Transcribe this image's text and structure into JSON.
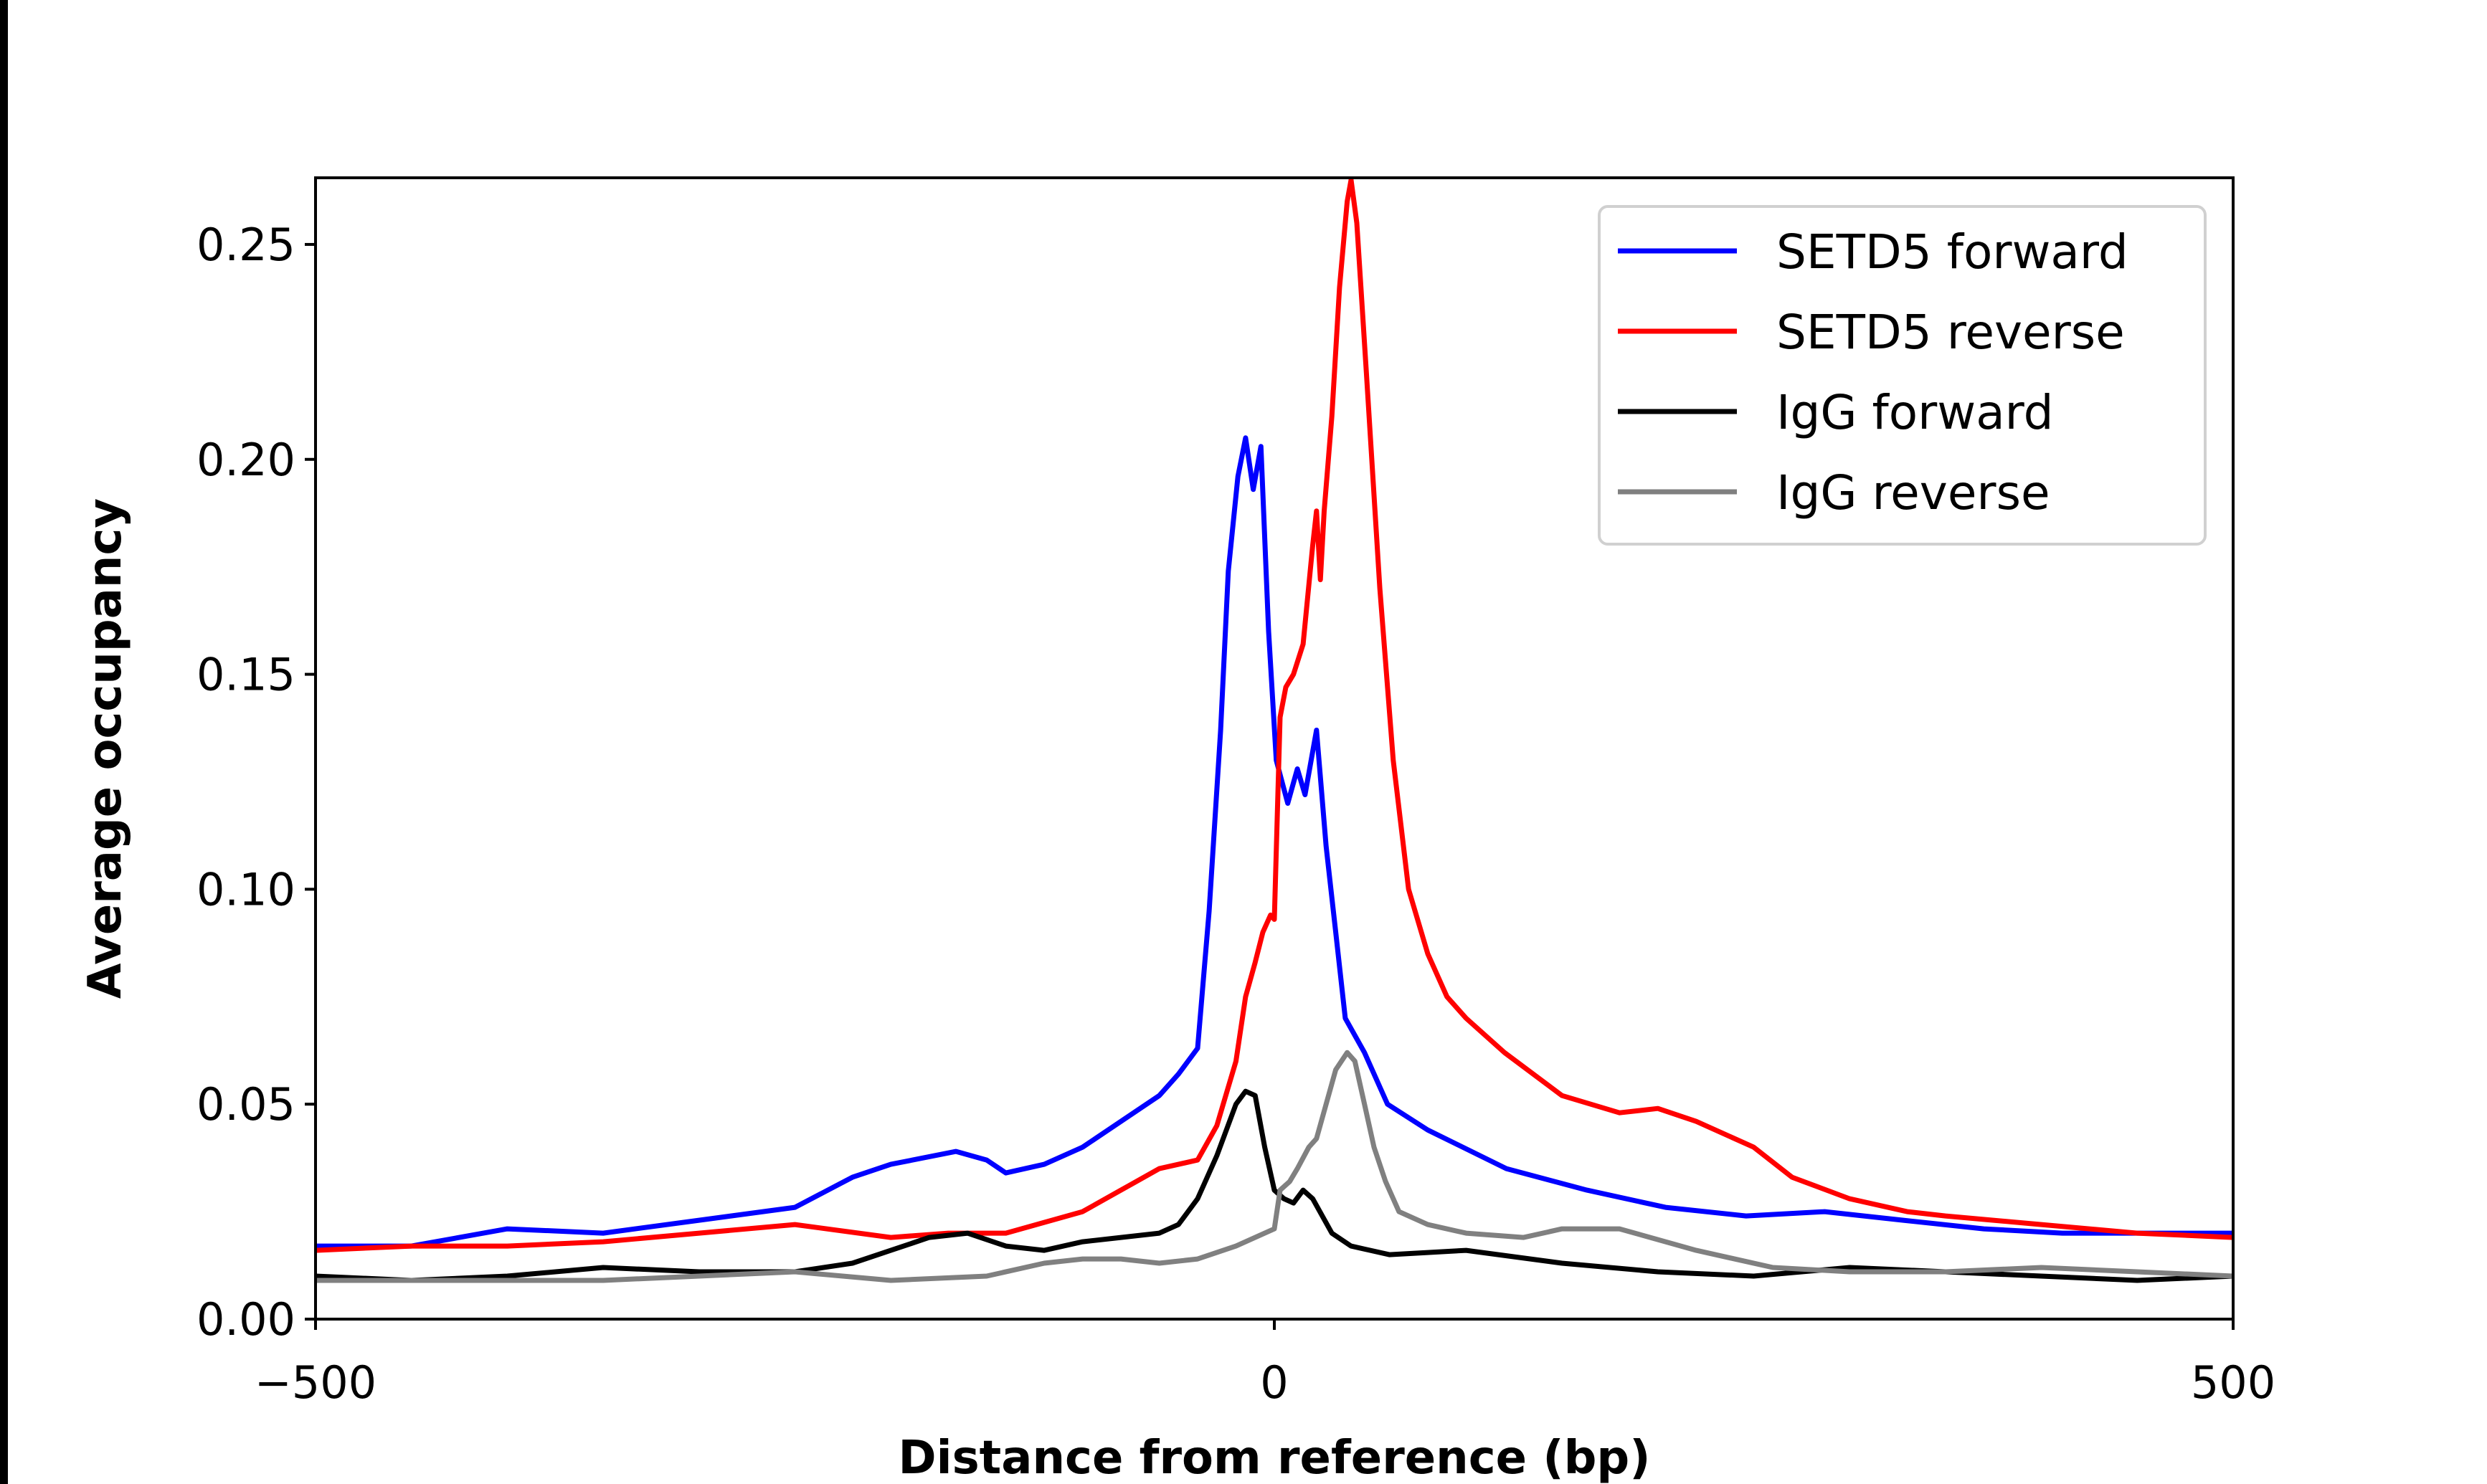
{
  "chart_data": {
    "type": "line",
    "title": "",
    "xlabel": "Distance from reference (bp)",
    "ylabel": "Average occupancy",
    "xlim": [
      -500,
      500
    ],
    "ylim": [
      0,
      0.2655
    ],
    "xticks": [
      -500,
      0,
      500
    ],
    "xtick_labels": [
      "−500",
      "0",
      "500"
    ],
    "yticks": [
      0,
      0.05,
      0.1,
      0.15,
      0.2,
      0.25
    ],
    "ytick_labels": [
      "0.00",
      "0.05",
      "0.10",
      "0.15",
      "0.20",
      "0.25"
    ],
    "grid": false,
    "legend_placement": "top-right",
    "series": [
      {
        "name": "SETD5 forward",
        "color": "#0000ff",
        "x": [
          -500,
          -450,
          -400,
          -350,
          -300,
          -250,
          -220,
          -200,
          -166,
          -150,
          -140,
          -120,
          -100,
          -80,
          -60,
          -50,
          -40,
          -34,
          -28,
          -24,
          -19,
          -15,
          -11,
          -7,
          -3,
          1,
          7,
          12,
          16,
          22,
          27,
          32,
          37,
          47,
          59,
          80,
          121,
          163,
          204,
          246,
          287,
          328,
          370,
          411,
          500
        ],
        "y": [
          0.017,
          0.017,
          0.021,
          0.02,
          0.023,
          0.026,
          0.033,
          0.036,
          0.039,
          0.037,
          0.034,
          0.036,
          0.04,
          0.046,
          0.052,
          0.057,
          0.063,
          0.095,
          0.137,
          0.174,
          0.196,
          0.205,
          0.193,
          0.203,
          0.16,
          0.13,
          0.12,
          0.128,
          0.122,
          0.137,
          0.11,
          0.09,
          0.07,
          0.062,
          0.05,
          0.044,
          0.035,
          0.03,
          0.026,
          0.024,
          0.025,
          0.023,
          0.021,
          0.02,
          0.02
        ]
      },
      {
        "name": "SETD5 reverse",
        "color": "#ff0000",
        "x": [
          -500,
          -450,
          -400,
          -350,
          -300,
          -250,
          -200,
          -170,
          -140,
          -100,
          -80,
          -60,
          -40,
          -30,
          -20,
          -15,
          -10,
          -6,
          -2,
          0,
          3,
          6,
          10,
          15,
          20,
          22,
          24,
          26,
          30,
          34,
          38,
          40,
          43,
          48,
          55,
          62,
          70,
          80,
          90,
          100,
          120,
          150,
          180,
          200,
          220,
          250,
          270,
          300,
          330,
          350,
          400,
          450,
          500
        ],
        "y": [
          0.016,
          0.017,
          0.017,
          0.018,
          0.02,
          0.022,
          0.019,
          0.02,
          0.02,
          0.025,
          0.03,
          0.035,
          0.037,
          0.045,
          0.06,
          0.075,
          0.083,
          0.09,
          0.094,
          0.093,
          0.14,
          0.147,
          0.15,
          0.157,
          0.18,
          0.188,
          0.172,
          0.188,
          0.21,
          0.24,
          0.26,
          0.265,
          0.255,
          0.22,
          0.17,
          0.13,
          0.1,
          0.085,
          0.075,
          0.07,
          0.062,
          0.052,
          0.048,
          0.049,
          0.046,
          0.04,
          0.033,
          0.028,
          0.025,
          0.024,
          0.022,
          0.02,
          0.019
        ]
      },
      {
        "name": "IgG forward",
        "color": "#000000",
        "x": [
          -500,
          -450,
          -400,
          -350,
          -300,
          -250,
          -220,
          -200,
          -180,
          -160,
          -140,
          -120,
          -100,
          -80,
          -60,
          -50,
          -40,
          -30,
          -20,
          -15,
          -10,
          -5,
          0,
          5,
          10,
          15,
          20,
          30,
          40,
          60,
          100,
          150,
          200,
          250,
          300,
          350,
          400,
          450,
          500
        ],
        "y": [
          0.01,
          0.009,
          0.01,
          0.012,
          0.011,
          0.011,
          0.013,
          0.016,
          0.019,
          0.02,
          0.017,
          0.016,
          0.018,
          0.019,
          0.02,
          0.022,
          0.028,
          0.038,
          0.05,
          0.053,
          0.052,
          0.04,
          0.03,
          0.028,
          0.027,
          0.03,
          0.028,
          0.02,
          0.017,
          0.015,
          0.016,
          0.013,
          0.011,
          0.01,
          0.012,
          0.011,
          0.01,
          0.009,
          0.01
        ]
      },
      {
        "name": "IgG reverse",
        "color": "#808080",
        "x": [
          -500,
          -450,
          -400,
          -350,
          -300,
          -250,
          -200,
          -150,
          -120,
          -100,
          -80,
          -60,
          -40,
          -20,
          -5,
          0,
          3,
          8,
          12,
          18,
          22,
          27,
          32,
          38,
          42,
          47,
          52,
          58,
          65,
          80,
          100,
          130,
          150,
          180,
          220,
          260,
          300,
          350,
          400,
          450,
          500
        ],
        "y": [
          0.009,
          0.009,
          0.009,
          0.009,
          0.01,
          0.011,
          0.009,
          0.01,
          0.013,
          0.014,
          0.014,
          0.013,
          0.014,
          0.017,
          0.02,
          0.021,
          0.03,
          0.032,
          0.035,
          0.04,
          0.042,
          0.05,
          0.058,
          0.062,
          0.06,
          0.05,
          0.04,
          0.032,
          0.025,
          0.022,
          0.02,
          0.019,
          0.021,
          0.021,
          0.016,
          0.012,
          0.011,
          0.011,
          0.012,
          0.011,
          0.01
        ]
      }
    ]
  }
}
